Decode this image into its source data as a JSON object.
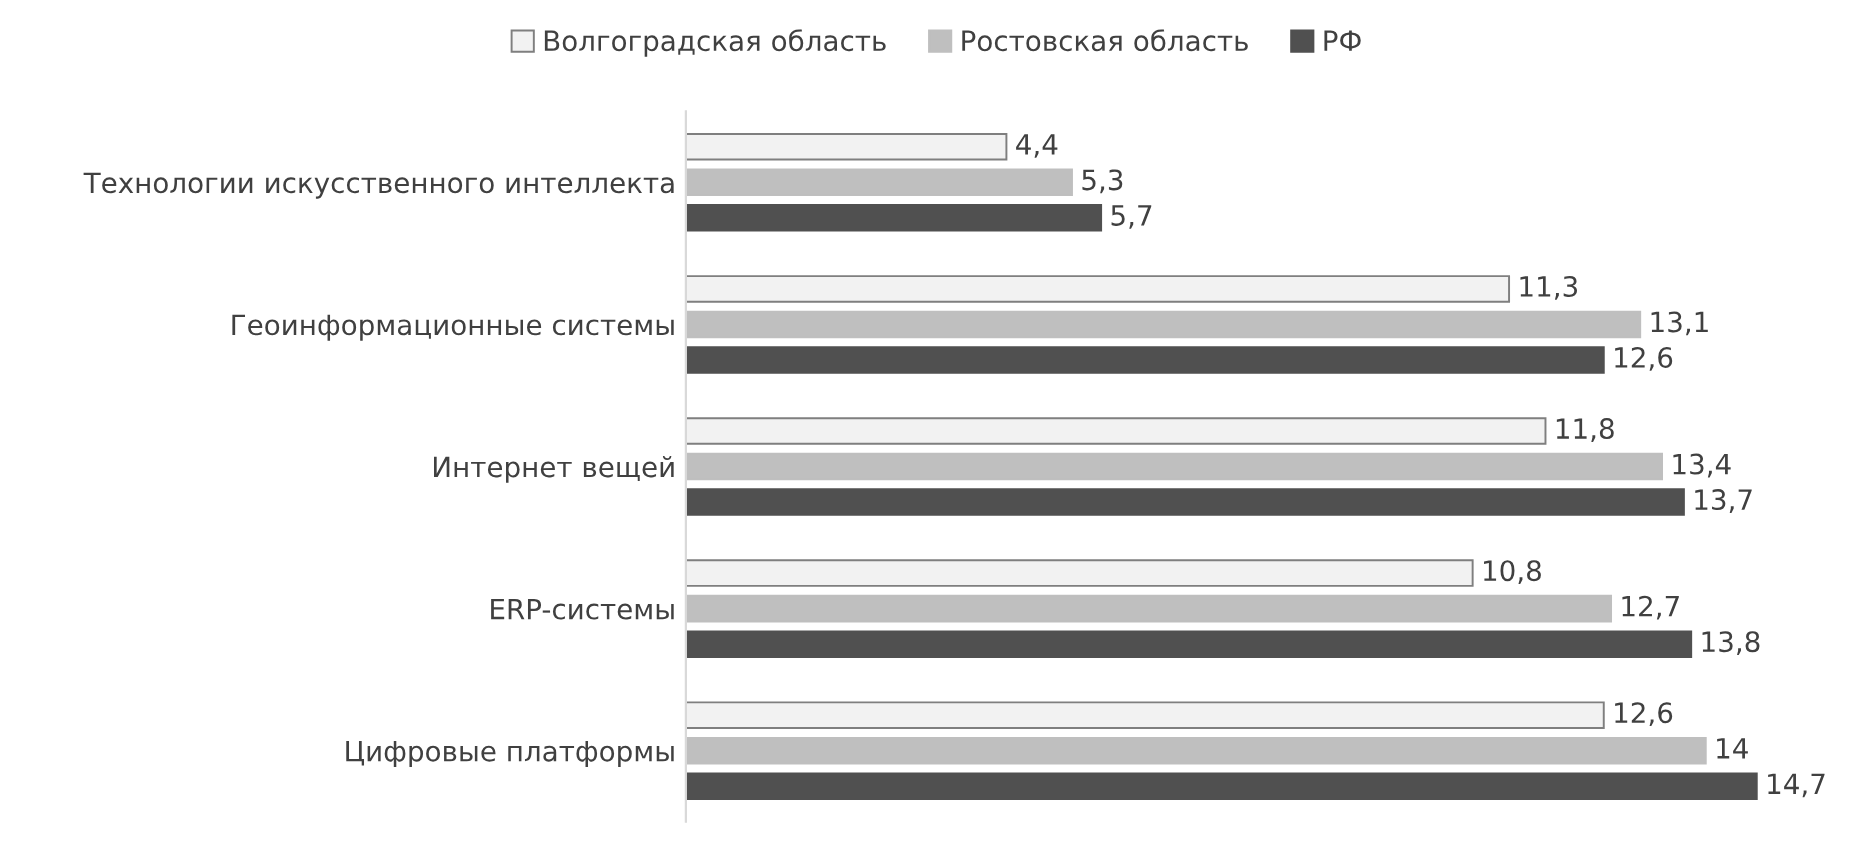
{
  "chart_data": {
    "type": "bar",
    "orientation": "horizontal",
    "categories": [
      "Технологии искусственного интеллекта",
      "Геоинформационные системы",
      "Интернет вещей",
      "ERP-системы",
      "Цифровые платформы"
    ],
    "series": [
      {
        "name": "Волгоградская область",
        "color": "#f2f2f2",
        "values": [
          4.4,
          11.3,
          11.8,
          10.8,
          12.6
        ],
        "value_labels": [
          "4,4",
          "11,3",
          "11,8",
          "10,8",
          "12,6"
        ]
      },
      {
        "name": "Ростовская область",
        "color": "#bfbfbf",
        "values": [
          5.3,
          13.1,
          13.4,
          12.7,
          14
        ],
        "value_labels": [
          "5,3",
          "13,1",
          "13,4",
          "12,7",
          "14"
        ]
      },
      {
        "name": "РФ",
        "color": "#505050",
        "values": [
          5.7,
          12.6,
          13.7,
          13.8,
          14.7
        ],
        "value_labels": [
          "5,7",
          "12,6",
          "13,7",
          "13,8",
          "14,7"
        ]
      }
    ],
    "legend": "top"
  }
}
